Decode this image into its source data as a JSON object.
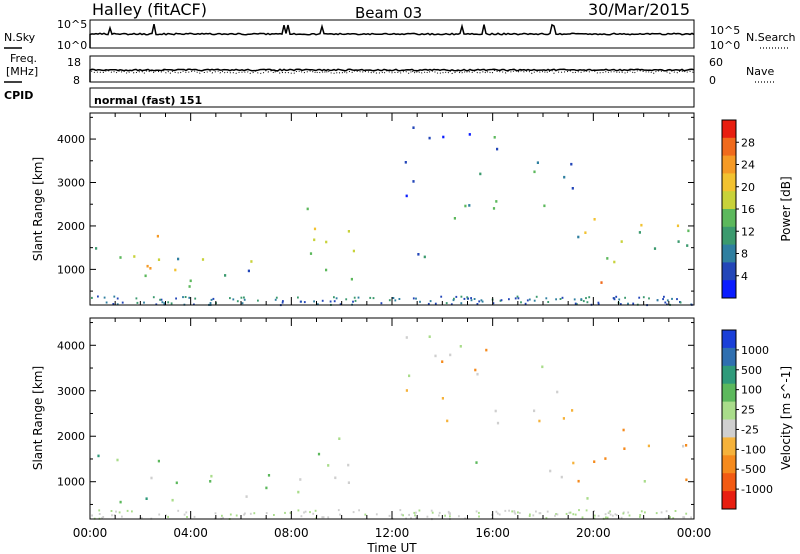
{
  "header": {
    "station": "Halley (fitACF)",
    "beam": "Beam 03",
    "date": "30/Mar/2015"
  },
  "side_labels": {
    "nsky": "N.Sky",
    "freq_line1": "Freq.",
    "freq_line2": "[MHz]",
    "cpid": "CPID",
    "nsearch": "N.Search",
    "nave": "Nave"
  },
  "strips": {
    "noise_left_ticks": [
      "10^5",
      "10^0"
    ],
    "noise_right_ticks": [
      "10^5",
      "10^0"
    ],
    "freq_left_ticks": [
      "18",
      "8"
    ],
    "freq_right_ticks": [
      "60",
      "0"
    ],
    "cpid_text": "normal (fast) 151"
  },
  "colors": {
    "power_scale": [
      "#0a1cff",
      "#2346b8",
      "#2f7fa0",
      "#3b9a6e",
      "#5cb85c",
      "#c8d23a",
      "#f2c230",
      "#f59a25",
      "#f06a1c",
      "#e81e10"
    ],
    "velocity_scale": [
      "#e81e10",
      "#f25a12",
      "#f58a1c",
      "#f5b23a",
      "#cfcfcf",
      "#a9dc8a",
      "#5cb85c",
      "#2f9a7a",
      "#2f6fb0",
      "#1a3fd8"
    ]
  },
  "chart_data": [
    {
      "type": "heatmap",
      "name": "power",
      "xlabel": "",
      "ylabel": "Slant Range [km]",
      "x_ticks": [
        "00:00",
        "04:00",
        "08:00",
        "12:00",
        "16:00",
        "20:00",
        "00:00"
      ],
      "x_range_hours": [
        0,
        24
      ],
      "y_ticks": [
        "1000",
        "2000",
        "3000",
        "4000"
      ],
      "ylim": [
        180,
        4600
      ],
      "colorbar_label": "Power [dB]",
      "colorbar_ticks": [
        "28",
        "24",
        "20",
        "16",
        "12",
        "8",
        "4"
      ],
      "colorbar_range": [
        0,
        30
      ],
      "features": [
        {
          "t0": 0.2,
          "t1": 4.8,
          "r0": 500,
          "r1": 1600,
          "mean": 14
        },
        {
          "t0": 1.5,
          "t1": 3.5,
          "r0": 700,
          "r1": 1900,
          "mean": 17
        },
        {
          "t0": 5.2,
          "t1": 7.3,
          "r0": 700,
          "r1": 1400,
          "mean": 10
        },
        {
          "t0": 8.0,
          "t1": 10.6,
          "r0": 700,
          "r1": 2600,
          "mean": 14
        },
        {
          "t0": 12.2,
          "t1": 15.4,
          "r0": 1200,
          "r1": 1500,
          "mean": 6
        },
        {
          "t0": 12.5,
          "t1": 16.5,
          "r0": 2200,
          "r1": 4300,
          "mean": 8
        },
        {
          "t0": 17.5,
          "t1": 19.8,
          "r0": 2200,
          "r1": 3600,
          "mean": 12
        },
        {
          "t0": 18.2,
          "t1": 24.0,
          "r0": 1000,
          "r1": 2200,
          "mean": 14
        },
        {
          "t0": 19.5,
          "t1": 21.0,
          "r0": 500,
          "r1": 900,
          "mean": 24
        }
      ]
    },
    {
      "type": "heatmap",
      "name": "velocity",
      "xlabel": "Time UT",
      "ylabel": "Slant Range [km]",
      "x_ticks": [
        "00:00",
        "04:00",
        "08:00",
        "12:00",
        "16:00",
        "20:00",
        "00:00"
      ],
      "x_range_hours": [
        0,
        24
      ],
      "y_ticks": [
        "1000",
        "2000",
        "3000",
        "4000"
      ],
      "ylim": [
        180,
        4600
      ],
      "colorbar_label": "Velocity [m s^-1]",
      "colorbar_ticks": [
        "1000",
        "500",
        "100",
        "25",
        "-25",
        "-100",
        "-500",
        "-1000"
      ],
      "features": [
        {
          "t0": 0.2,
          "t1": 4.8,
          "r0": 500,
          "r1": 1700,
          "mean": 300
        },
        {
          "t0": 5.2,
          "t1": 7.3,
          "r0": 700,
          "r1": 1400,
          "mean": 100
        },
        {
          "t0": 8.0,
          "t1": 10.6,
          "r0": 700,
          "r1": 2400,
          "mean": 50
        },
        {
          "t0": 12.2,
          "t1": 15.4,
          "r0": 1300,
          "r1": 1500,
          "mean": 0
        },
        {
          "t0": 12.5,
          "t1": 16.5,
          "r0": 2200,
          "r1": 4300,
          "mean": -200
        },
        {
          "t0": 17.5,
          "t1": 19.8,
          "r0": 2200,
          "r1": 3600,
          "mean": -200
        },
        {
          "t0": 18.2,
          "t1": 24.0,
          "r0": 1000,
          "r1": 2200,
          "mean": -300
        },
        {
          "t0": 19.5,
          "t1": 21.0,
          "r0": 500,
          "r1": 900,
          "mean": -50
        }
      ]
    }
  ]
}
